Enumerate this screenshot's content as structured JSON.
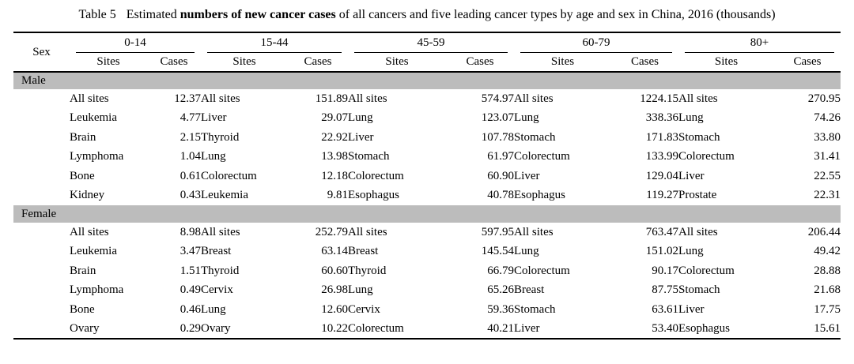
{
  "title": {
    "table_label": "Table 5",
    "text_before_bold": "Estimated ",
    "bold_text": "numbers of new cancer cases",
    "text_after_bold": " of all cancers and five leading cancer types by age and sex in China, 2016 (thousands)"
  },
  "header": {
    "sex_label": "Sex",
    "age_groups": [
      "0-14",
      "15-44",
      "45-59",
      "60-79",
      "80+"
    ],
    "sites_label": "Sites",
    "cases_label": "Cases"
  },
  "colors": {
    "band_background": "#bcbcbc",
    "rule": "#000000",
    "text": "#000000",
    "page_background": "#ffffff"
  },
  "sections": [
    {
      "label": "Male",
      "rows": [
        [
          {
            "site": "All sites",
            "cases": "12.37"
          },
          {
            "site": "All sites",
            "cases": "151.89"
          },
          {
            "site": "All sites",
            "cases": "574.97"
          },
          {
            "site": "All sites",
            "cases": "1224.15"
          },
          {
            "site": "All sites",
            "cases": "270.95"
          }
        ],
        [
          {
            "site": "Leukemia",
            "cases": "4.77"
          },
          {
            "site": "Liver",
            "cases": "29.07"
          },
          {
            "site": "Lung",
            "cases": "123.07"
          },
          {
            "site": "Lung",
            "cases": "338.36"
          },
          {
            "site": "Lung",
            "cases": "74.26"
          }
        ],
        [
          {
            "site": "Brain",
            "cases": "2.15"
          },
          {
            "site": "Thyroid",
            "cases": "22.92"
          },
          {
            "site": "Liver",
            "cases": "107.78"
          },
          {
            "site": "Stomach",
            "cases": "171.83"
          },
          {
            "site": "Stomach",
            "cases": "33.80"
          }
        ],
        [
          {
            "site": "Lymphoma",
            "cases": "1.04"
          },
          {
            "site": "Lung",
            "cases": "13.98"
          },
          {
            "site": "Stomach",
            "cases": "61.97"
          },
          {
            "site": "Colorectum",
            "cases": "133.99"
          },
          {
            "site": "Colorectum",
            "cases": "31.41"
          }
        ],
        [
          {
            "site": "Bone",
            "cases": "0.61"
          },
          {
            "site": "Colorectum",
            "cases": "12.18"
          },
          {
            "site": "Colorectum",
            "cases": "60.90"
          },
          {
            "site": "Liver",
            "cases": "129.04"
          },
          {
            "site": "Liver",
            "cases": "22.55"
          }
        ],
        [
          {
            "site": "Kidney",
            "cases": "0.43"
          },
          {
            "site": "Leukemia",
            "cases": "9.81"
          },
          {
            "site": "Esophagus",
            "cases": "40.78"
          },
          {
            "site": "Esophagus",
            "cases": "119.27"
          },
          {
            "site": "Prostate",
            "cases": "22.31"
          }
        ]
      ]
    },
    {
      "label": "Female",
      "rows": [
        [
          {
            "site": "All sites",
            "cases": "8.98"
          },
          {
            "site": "All sites",
            "cases": "252.79"
          },
          {
            "site": "All sites",
            "cases": "597.95"
          },
          {
            "site": "All sites",
            "cases": "763.47"
          },
          {
            "site": "All sites",
            "cases": "206.44"
          }
        ],
        [
          {
            "site": "Leukemia",
            "cases": "3.47"
          },
          {
            "site": "Breast",
            "cases": "63.14"
          },
          {
            "site": "Breast",
            "cases": "145.54"
          },
          {
            "site": "Lung",
            "cases": "151.02"
          },
          {
            "site": "Lung",
            "cases": "49.42"
          }
        ],
        [
          {
            "site": "Brain",
            "cases": "1.51"
          },
          {
            "site": "Thyroid",
            "cases": "60.60"
          },
          {
            "site": "Thyroid",
            "cases": "66.79"
          },
          {
            "site": "Colorectum",
            "cases": "90.17"
          },
          {
            "site": "Colorectum",
            "cases": "28.88"
          }
        ],
        [
          {
            "site": "Lymphoma",
            "cases": "0.49"
          },
          {
            "site": "Cervix",
            "cases": "26.98"
          },
          {
            "site": "Lung",
            "cases": "65.26"
          },
          {
            "site": "Breast",
            "cases": "87.75"
          },
          {
            "site": "Stomach",
            "cases": "21.68"
          }
        ],
        [
          {
            "site": "Bone",
            "cases": "0.46"
          },
          {
            "site": "Lung",
            "cases": "12.60"
          },
          {
            "site": "Cervix",
            "cases": "59.36"
          },
          {
            "site": "Stomach",
            "cases": "63.61"
          },
          {
            "site": "Liver",
            "cases": "17.75"
          }
        ],
        [
          {
            "site": "Ovary",
            "cases": "0.29"
          },
          {
            "site": "Ovary",
            "cases": "10.22"
          },
          {
            "site": "Colorectum",
            "cases": "40.21"
          },
          {
            "site": "Liver",
            "cases": "53.40"
          },
          {
            "site": "Esophagus",
            "cases": "15.61"
          }
        ]
      ]
    }
  ]
}
